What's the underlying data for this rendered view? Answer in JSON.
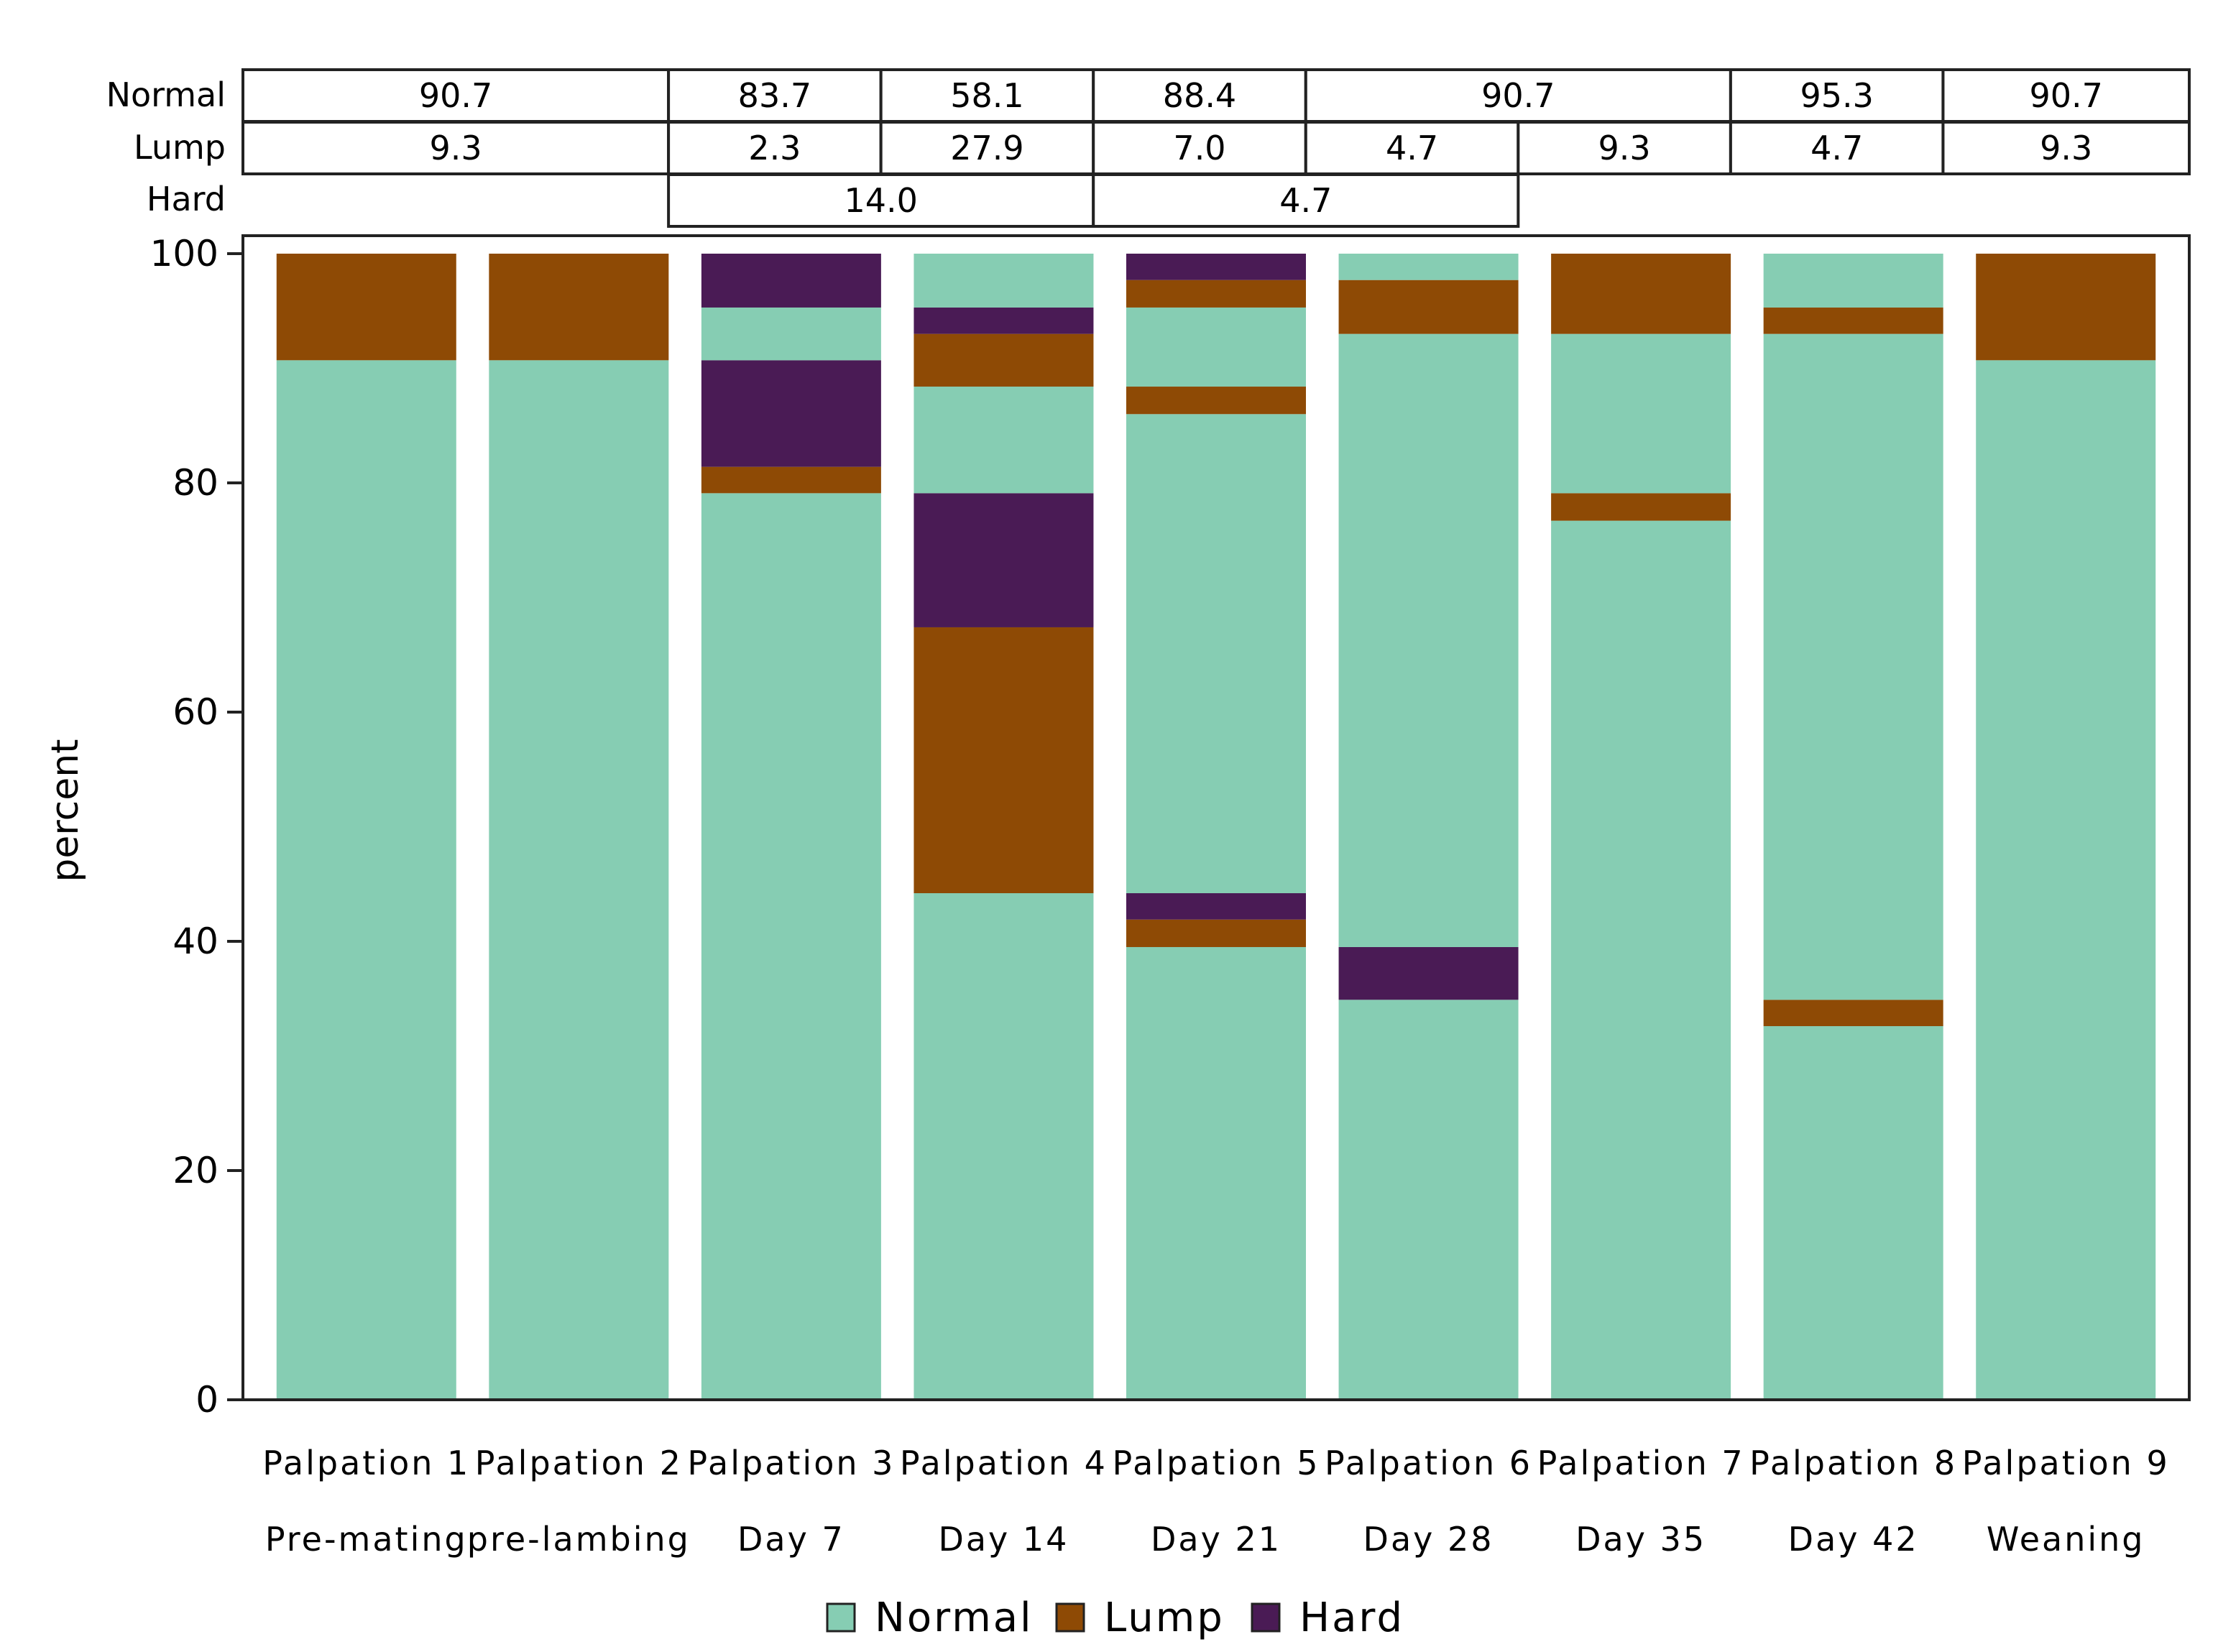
{
  "colors": {
    "normal": "#86CDB3",
    "lump": "#8E4A05",
    "hard": "#4A1B55",
    "axis": "#222222",
    "background": "#ffffff"
  },
  "chart_data": {
    "type": "bar",
    "stacked": true,
    "title": "",
    "xlabel": "",
    "ylabel": "percent",
    "ylim": [
      0,
      100
    ],
    "yticks": [
      0,
      20,
      40,
      60,
      80,
      100
    ],
    "categories": [
      {
        "line1": "Palpation 1",
        "line2": "Pre-mating"
      },
      {
        "line1": "Palpation 2",
        "line2": "pre-lambing"
      },
      {
        "line1": "Palpation 3",
        "line2": "Day 7"
      },
      {
        "line1": "Palpation 4",
        "line2": "Day 14"
      },
      {
        "line1": "Palpation 5",
        "line2": "Day 21"
      },
      {
        "line1": "Palpation 6",
        "line2": "Day 28"
      },
      {
        "line1": "Palpation 7",
        "line2": "Day 35"
      },
      {
        "line1": "Palpation 8",
        "line2": "Day 42"
      },
      {
        "line1": "Palpation 9",
        "line2": "Weaning"
      }
    ],
    "segments": [
      [
        {
          "series": "Normal",
          "from": 0,
          "to": 90.7
        },
        {
          "series": "Lump",
          "from": 90.7,
          "to": 100
        }
      ],
      [
        {
          "series": "Normal",
          "from": 0,
          "to": 90.7
        },
        {
          "series": "Lump",
          "from": 90.7,
          "to": 100
        }
      ],
      [
        {
          "series": "Normal",
          "from": 0,
          "to": 79.1
        },
        {
          "series": "Lump",
          "from": 79.1,
          "to": 81.4
        },
        {
          "series": "Hard",
          "from": 81.4,
          "to": 90.7
        },
        {
          "series": "Normal",
          "from": 90.7,
          "to": 95.3
        },
        {
          "series": "Hard",
          "from": 95.3,
          "to": 100
        }
      ],
      [
        {
          "series": "Normal",
          "from": 0,
          "to": 44.2
        },
        {
          "series": "Lump",
          "from": 44.2,
          "to": 67.4
        },
        {
          "series": "Hard",
          "from": 67.4,
          "to": 79.1
        },
        {
          "series": "Normal",
          "from": 79.1,
          "to": 88.4
        },
        {
          "series": "Lump",
          "from": 88.4,
          "to": 93.0
        },
        {
          "series": "Hard",
          "from": 93.0,
          "to": 95.3
        },
        {
          "series": "Normal",
          "from": 95.3,
          "to": 100
        }
      ],
      [
        {
          "series": "Normal",
          "from": 0,
          "to": 39.5
        },
        {
          "series": "Lump",
          "from": 39.5,
          "to": 41.9
        },
        {
          "series": "Hard",
          "from": 41.9,
          "to": 44.2
        },
        {
          "series": "Normal",
          "from": 44.2,
          "to": 86.0
        },
        {
          "series": "Lump",
          "from": 86.0,
          "to": 88.4
        },
        {
          "series": "Normal",
          "from": 88.4,
          "to": 95.3
        },
        {
          "series": "Lump",
          "from": 95.3,
          "to": 97.7
        },
        {
          "series": "Hard",
          "from": 97.7,
          "to": 100
        }
      ],
      [
        {
          "series": "Normal",
          "from": 0,
          "to": 34.9
        },
        {
          "series": "Hard",
          "from": 34.9,
          "to": 39.5
        },
        {
          "series": "Normal",
          "from": 39.5,
          "to": 93.0
        },
        {
          "series": "Lump",
          "from": 93.0,
          "to": 97.7
        },
        {
          "series": "Normal",
          "from": 97.7,
          "to": 100
        }
      ],
      [
        {
          "series": "Normal",
          "from": 0,
          "to": 76.7
        },
        {
          "series": "Lump",
          "from": 76.7,
          "to": 79.1
        },
        {
          "series": "Normal",
          "from": 79.1,
          "to": 93.0
        },
        {
          "series": "Lump",
          "from": 93.0,
          "to": 100
        }
      ],
      [
        {
          "series": "Normal",
          "from": 0,
          "to": 32.6
        },
        {
          "series": "Lump",
          "from": 32.6,
          "to": 34.9
        },
        {
          "series": "Normal",
          "from": 34.9,
          "to": 93.0
        },
        {
          "series": "Lump",
          "from": 93.0,
          "to": 95.3
        },
        {
          "series": "Normal",
          "from": 95.3,
          "to": 100
        }
      ],
      [
        {
          "series": "Normal",
          "from": 0,
          "to": 90.7
        },
        {
          "series": "Lump",
          "from": 90.7,
          "to": 100
        }
      ]
    ],
    "table": {
      "rows": [
        {
          "label": "Normal",
          "cells": [
            {
              "value": "90.7",
              "start": 0,
              "end": 1
            },
            {
              "value": "83.7",
              "start": 2,
              "end": 2
            },
            {
              "value": "58.1",
              "start": 3,
              "end": 3
            },
            {
              "value": "88.4",
              "start": 4,
              "end": 4
            },
            {
              "value": "90.7",
              "start": 5,
              "end": 6
            },
            {
              "value": "95.3",
              "start": 7,
              "end": 7
            },
            {
              "value": "90.7",
              "start": 8,
              "end": 8
            }
          ]
        },
        {
          "label": "Lump",
          "cells": [
            {
              "value": "9.3",
              "start": 0,
              "end": 1
            },
            {
              "value": "2.3",
              "start": 2,
              "end": 2
            },
            {
              "value": "27.9",
              "start": 3,
              "end": 3
            },
            {
              "value": "7.0",
              "start": 4,
              "end": 4
            },
            {
              "value": "4.7",
              "start": 5,
              "end": 5
            },
            {
              "value": "9.3",
              "start": 6,
              "end": 6
            },
            {
              "value": "4.7",
              "start": 7,
              "end": 7
            },
            {
              "value": "9.3",
              "start": 8,
              "end": 8
            }
          ]
        },
        {
          "label": "Hard",
          "cells": [
            {
              "value": "14.0",
              "start": 2,
              "end": 3
            },
            {
              "value": "4.7",
              "start": 4,
              "end": 5
            }
          ]
        }
      ]
    },
    "legend": {
      "placement": "bottom-center",
      "entries": [
        {
          "label": "Normal",
          "series": "Normal"
        },
        {
          "label": "Lump",
          "series": "Lump"
        },
        {
          "label": "Hard",
          "series": "Hard"
        }
      ]
    }
  }
}
